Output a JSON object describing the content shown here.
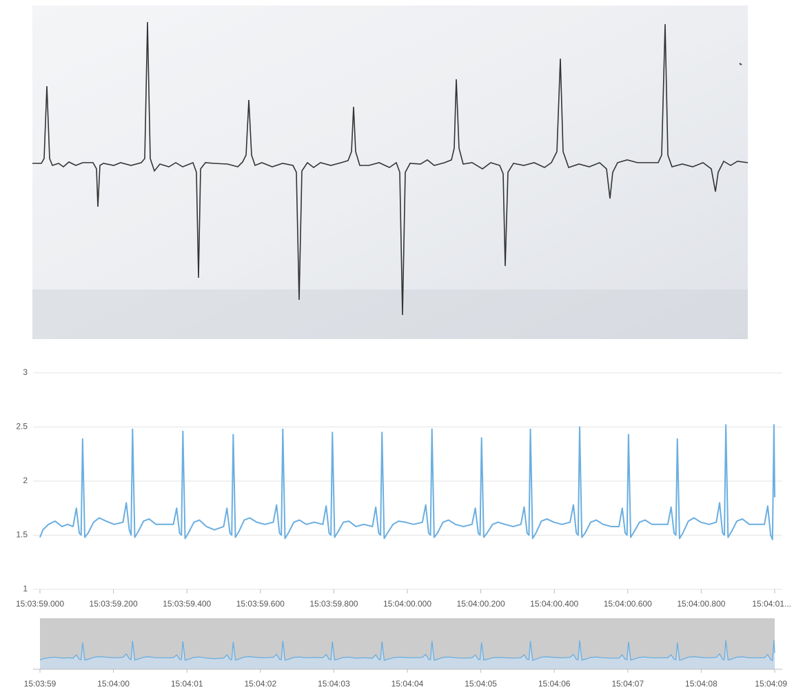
{
  "chart_data": {
    "type": "line",
    "color": "#6aaee0",
    "grid": true,
    "ylim": [
      1,
      3
    ],
    "yticks": [
      1,
      1.5,
      2,
      2.5,
      3
    ],
    "xlim": [
      0,
      2.0
    ],
    "xticks": [
      {
        "value": 0,
        "label": "15:03:59.000"
      },
      {
        "value": 0.2,
        "label": "15:03:59.200"
      },
      {
        "value": 0.4,
        "label": "15:03:59.400"
      },
      {
        "value": 0.6,
        "label": "15:03:59.600"
      },
      {
        "value": 0.8,
        "label": "15:03:59.800"
      },
      {
        "value": 1.0,
        "label": "15:04:00.000"
      },
      {
        "value": 1.2,
        "label": "15:04:00.200"
      },
      {
        "value": 1.4,
        "label": "15:04:00.400"
      },
      {
        "value": 1.6,
        "label": "15:04:00.600"
      },
      {
        "value": 1.8,
        "label": "15:04:00.800"
      },
      {
        "value": 2.0,
        "label": "15:04:01..."
      }
    ],
    "x": [
      0,
      0.008,
      0.023,
      0.041,
      0.06,
      0.075,
      0.09,
      0.099,
      0.107,
      0.112,
      0.116,
      0.122,
      0.131,
      0.146,
      0.161,
      0.18,
      0.202,
      0.226,
      0.235,
      0.243,
      0.248,
      0.252,
      0.258,
      0.267,
      0.282,
      0.297,
      0.316,
      0.338,
      0.363,
      0.372,
      0.38,
      0.385,
      0.389,
      0.395,
      0.404,
      0.419,
      0.434,
      0.453,
      0.475,
      0.5,
      0.509,
      0.517,
      0.522,
      0.526,
      0.532,
      0.541,
      0.556,
      0.571,
      0.59,
      0.612,
      0.635,
      0.644,
      0.652,
      0.657,
      0.661,
      0.667,
      0.676,
      0.691,
      0.706,
      0.725,
      0.747,
      0.77,
      0.779,
      0.787,
      0.792,
      0.796,
      0.802,
      0.811,
      0.826,
      0.841,
      0.86,
      0.882,
      0.905,
      0.914,
      0.922,
      0.927,
      0.931,
      0.937,
      0.946,
      0.961,
      0.976,
      0.995,
      1.017,
      1.041,
      1.05,
      1.058,
      1.063,
      1.067,
      1.073,
      1.082,
      1.097,
      1.112,
      1.131,
      1.153,
      1.176,
      1.185,
      1.193,
      1.198,
      1.202,
      1.208,
      1.217,
      1.232,
      1.247,
      1.266,
      1.288,
      1.309,
      1.318,
      1.326,
      1.331,
      1.335,
      1.341,
      1.35,
      1.365,
      1.38,
      1.399,
      1.421,
      1.443,
      1.452,
      1.46,
      1.465,
      1.469,
      1.475,
      1.484,
      1.499,
      1.514,
      1.533,
      1.555,
      1.576,
      1.585,
      1.593,
      1.598,
      1.602,
      1.608,
      1.617,
      1.632,
      1.647,
      1.666,
      1.688,
      1.709,
      1.718,
      1.726,
      1.731,
      1.735,
      1.741,
      1.75,
      1.765,
      1.78,
      1.799,
      1.821,
      1.841,
      1.85,
      1.858,
      1.863,
      1.867,
      1.873,
      1.882,
      1.897,
      1.912,
      1.931,
      1.953,
      1.972,
      1.981,
      1.989,
      1.994,
      1.998,
      2.0
    ],
    "values": [
      1.48,
      1.55,
      1.6,
      1.63,
      1.58,
      1.6,
      1.58,
      1.75,
      1.52,
      1.5,
      2.39,
      1.48,
      1.52,
      1.62,
      1.66,
      1.63,
      1.6,
      1.62,
      1.8,
      1.55,
      1.5,
      2.48,
      1.48,
      1.53,
      1.63,
      1.65,
      1.6,
      1.6,
      1.6,
      1.75,
      1.52,
      1.5,
      2.46,
      1.47,
      1.52,
      1.62,
      1.64,
      1.58,
      1.55,
      1.58,
      1.75,
      1.52,
      1.5,
      2.43,
      1.48,
      1.53,
      1.64,
      1.66,
      1.62,
      1.6,
      1.62,
      1.78,
      1.52,
      1.5,
      2.48,
      1.47,
      1.52,
      1.62,
      1.64,
      1.6,
      1.62,
      1.6,
      1.77,
      1.52,
      1.5,
      2.45,
      1.48,
      1.53,
      1.62,
      1.63,
      1.58,
      1.6,
      1.58,
      1.76,
      1.52,
      1.5,
      2.45,
      1.47,
      1.52,
      1.6,
      1.63,
      1.62,
      1.6,
      1.62,
      1.78,
      1.52,
      1.5,
      2.48,
      1.48,
      1.52,
      1.62,
      1.64,
      1.6,
      1.58,
      1.6,
      1.75,
      1.52,
      1.5,
      2.4,
      1.48,
      1.52,
      1.6,
      1.62,
      1.6,
      1.58,
      1.6,
      1.76,
      1.52,
      1.5,
      2.48,
      1.47,
      1.52,
      1.63,
      1.65,
      1.62,
      1.6,
      1.62,
      1.78,
      1.52,
      1.5,
      2.5,
      1.48,
      1.52,
      1.62,
      1.64,
      1.6,
      1.58,
      1.58,
      1.75,
      1.52,
      1.5,
      2.43,
      1.48,
      1.53,
      1.62,
      1.64,
      1.6,
      1.6,
      1.6,
      1.76,
      1.52,
      1.5,
      2.39,
      1.47,
      1.52,
      1.63,
      1.66,
      1.62,
      1.6,
      1.62,
      1.8,
      1.52,
      1.5,
      2.52,
      1.48,
      1.53,
      1.63,
      1.65,
      1.6,
      1.6,
      1.6,
      1.77,
      1.5,
      1.46,
      2.52,
      1.85
    ],
    "navigator_labels": [
      "15:03:59",
      "15:04:00",
      "15:04:01",
      "15:04:02",
      "15:04:03",
      "15:04:04",
      "15:04:05",
      "15:04:06",
      "15:04:07",
      "15:04:08",
      "15:04:09"
    ]
  }
}
